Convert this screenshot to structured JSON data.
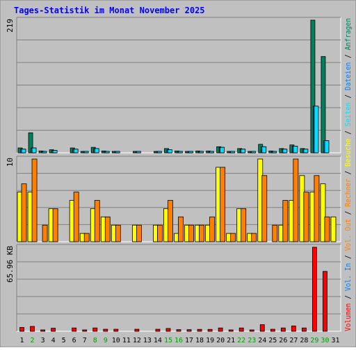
{
  "title": "Tages-Statistik im Monat November 2025",
  "colors": {
    "background": "#c0c0c0",
    "frame": "#e0e0e0",
    "title": "#0000ff",
    "anfragen": "#00805c",
    "dateien": "#0080ff",
    "seiten": "#00e0ff",
    "besuche": "#ffff00",
    "rechner": "#ff8000",
    "volumen": "#ff0000",
    "weekend_day": "#00a000",
    "weekday": "#000000"
  },
  "right_labels": {
    "top": [
      {
        "text": "Anfragen",
        "color": "#00805c"
      },
      {
        "text": "/",
        "color": "#000000"
      },
      {
        "text": "Dateien",
        "color": "#0080ff"
      },
      {
        "text": "/",
        "color": "#000000"
      },
      {
        "text": "Seiten",
        "color": "#00e0ff"
      },
      {
        "text": "/",
        "color": "#000000"
      },
      {
        "text": "Besuche",
        "color": "#ffff00"
      },
      {
        "text": "/",
        "color": "#000000"
      },
      {
        "text": "Rechner",
        "color": "#ff8000"
      },
      {
        "text": "/",
        "color": "#000000"
      },
      {
        "text": "Vol. Out",
        "color": "#ff8000"
      },
      {
        "text": "/",
        "color": "#000000"
      },
      {
        "text": "Vol. In",
        "color": "#0080ff"
      },
      {
        "text": "/",
        "color": "#000000"
      },
      {
        "text": "Volumen",
        "color": "#ff0000"
      }
    ]
  },
  "chart_data": [
    {
      "type": "bar",
      "panel": "anfragen",
      "ymax_label": "219",
      "ylim": [
        0,
        219
      ],
      "x": [
        1,
        2,
        3,
        4,
        5,
        6,
        7,
        8,
        9,
        10,
        11,
        12,
        13,
        14,
        15,
        16,
        17,
        18,
        19,
        20,
        21,
        22,
        23,
        24,
        25,
        26,
        27,
        28,
        29,
        30,
        31
      ],
      "series": [
        {
          "name": "Anfragen",
          "color": "#00805c",
          "values": [
            8,
            33,
            3,
            5,
            0,
            8,
            1,
            9,
            3,
            2,
            0,
            2,
            0,
            2,
            7,
            3,
            2,
            3,
            3,
            10,
            1,
            7,
            1,
            14,
            3,
            7,
            13,
            7,
            219,
            159,
            0
          ]
        },
        {
          "name": "Dateien",
          "color": "#0080ff",
          "values": [
            6,
            8,
            1,
            4,
            0,
            6,
            1,
            7,
            2,
            2,
            0,
            1,
            0,
            2,
            5,
            2,
            2,
            2,
            2,
            9,
            1,
            6,
            1,
            10,
            2,
            6,
            11,
            6,
            77,
            20,
            0
          ]
        },
        {
          "name": "Seiten",
          "color": "#00e0ff",
          "values": [
            6,
            8,
            1,
            4,
            0,
            6,
            1,
            7,
            2,
            2,
            0,
            1,
            0,
            2,
            5,
            2,
            2,
            2,
            2,
            9,
            1,
            6,
            1,
            10,
            2,
            6,
            11,
            6,
            77,
            20,
            0
          ]
        }
      ]
    },
    {
      "type": "bar",
      "panel": "besuche",
      "ymax_label": "10",
      "ylim": [
        0,
        10
      ],
      "x": [
        1,
        2,
        3,
        4,
        5,
        6,
        7,
        8,
        9,
        10,
        11,
        12,
        13,
        14,
        15,
        16,
        17,
        18,
        19,
        20,
        21,
        22,
        23,
        24,
        25,
        26,
        27,
        28,
        29,
        30,
        31
      ],
      "series": [
        {
          "name": "Besuche",
          "color": "#ffff00",
          "values": [
            6,
            6,
            0,
            4,
            0,
            5,
            1,
            4,
            3,
            2,
            0,
            2,
            0,
            2,
            4,
            1,
            2,
            2,
            2,
            9,
            1,
            4,
            1,
            10,
            0,
            2,
            5,
            8,
            6,
            7,
            3
          ]
        },
        {
          "name": "Rechner",
          "color": "#ff8000",
          "values": [
            7,
            10,
            2,
            4,
            0,
            6,
            1,
            5,
            3,
            2,
            0,
            2,
            0,
            2,
            5,
            3,
            2,
            2,
            3,
            9,
            1,
            4,
            1,
            8,
            2,
            5,
            10,
            6,
            8,
            3,
            0
          ]
        }
      ]
    },
    {
      "type": "bar",
      "panel": "volumen",
      "ymax_label": "65.96 KB",
      "ylim": [
        0,
        65.96
      ],
      "unit": "KB",
      "x": [
        1,
        2,
        3,
        4,
        5,
        6,
        7,
        8,
        9,
        10,
        11,
        12,
        13,
        14,
        15,
        16,
        17,
        18,
        19,
        20,
        21,
        22,
        23,
        24,
        25,
        26,
        27,
        28,
        29,
        30,
        31
      ],
      "series": [
        {
          "name": "Volumen",
          "color": "#ff0000",
          "values": [
            3.0,
            3.8,
            1.0,
            2.4,
            0,
            2.6,
            1.0,
            2.6,
            1.6,
            1.6,
            0,
            1.6,
            0,
            1.6,
            2.2,
            1.3,
            1.3,
            1.5,
            1.5,
            2.6,
            1.0,
            2.6,
            1.0,
            5.2,
            1.6,
            2.6,
            4.2,
            2.6,
            65.96,
            47.0,
            0
          ]
        }
      ]
    }
  ],
  "x_labels": [
    {
      "day": "1",
      "weekend": false
    },
    {
      "day": "2",
      "weekend": true
    },
    {
      "day": "3",
      "weekend": false
    },
    {
      "day": "4",
      "weekend": false
    },
    {
      "day": "5",
      "weekend": false
    },
    {
      "day": "6",
      "weekend": false
    },
    {
      "day": "7",
      "weekend": false
    },
    {
      "day": "8",
      "weekend": true
    },
    {
      "day": "9",
      "weekend": true
    },
    {
      "day": "10",
      "weekend": false
    },
    {
      "day": "11",
      "weekend": false
    },
    {
      "day": "12",
      "weekend": false
    },
    {
      "day": "13",
      "weekend": false
    },
    {
      "day": "14",
      "weekend": false
    },
    {
      "day": "15",
      "weekend": true
    },
    {
      "day": "16",
      "weekend": true
    },
    {
      "day": "17",
      "weekend": false
    },
    {
      "day": "18",
      "weekend": false
    },
    {
      "day": "19",
      "weekend": false
    },
    {
      "day": "20",
      "weekend": false
    },
    {
      "day": "21",
      "weekend": false
    },
    {
      "day": "22",
      "weekend": true
    },
    {
      "day": "23",
      "weekend": true
    },
    {
      "day": "24",
      "weekend": false
    },
    {
      "day": "25",
      "weekend": false
    },
    {
      "day": "26",
      "weekend": false
    },
    {
      "day": "27",
      "weekend": false
    },
    {
      "day": "28",
      "weekend": false
    },
    {
      "day": "29",
      "weekend": true
    },
    {
      "day": "30",
      "weekend": true
    },
    {
      "day": "31",
      "weekend": false
    }
  ]
}
